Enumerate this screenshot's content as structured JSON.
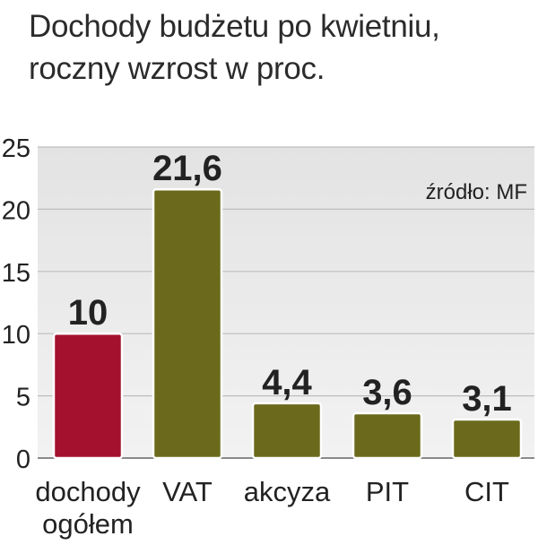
{
  "title_lines": [
    "Dochody budżetu po kwietniu,",
    "roczny wzrost w proc."
  ],
  "source_note": "źródło: MF",
  "chart_data": {
    "type": "bar",
    "title": "Dochody budżetu po kwietniu, roczny wzrost w proc.",
    "categories": [
      [
        "dochody",
        "ogółem"
      ],
      [
        "VAT"
      ],
      [
        "akcyza"
      ],
      [
        "PIT"
      ],
      [
        "CIT"
      ]
    ],
    "values": [
      10,
      21.6,
      4.4,
      3.6,
      3.1
    ],
    "value_labels": [
      "10",
      "21,6",
      "4,4",
      "3,6",
      "3,1"
    ],
    "yticks": [
      0,
      5,
      10,
      15,
      20,
      25
    ],
    "ylim": [
      0,
      25
    ],
    "grid": true,
    "xlabel": "",
    "ylabel": "",
    "colors": {
      "highlight": "#a3112e",
      "default": "#6b6a1c",
      "bar_stroke": "#ffffff",
      "plot_bg_top": "#e3e3e3",
      "plot_bg_bottom": "#f2f2f2",
      "grid": "#bdbdbd",
      "axis": "#666666",
      "text": "#222222"
    },
    "bar_colors": [
      "highlight",
      "default",
      "default",
      "default",
      "default"
    ]
  }
}
